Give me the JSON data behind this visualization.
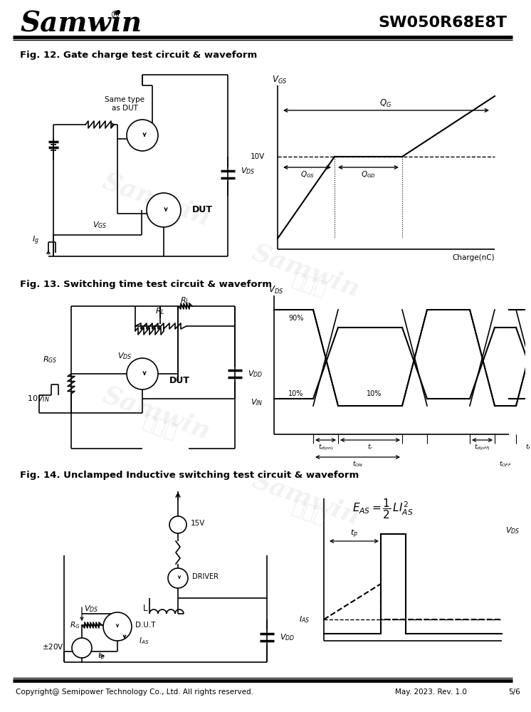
{
  "title_company": "Samwin",
  "title_part": "SW050R68E8T",
  "fig12_title": "Fig. 12. Gate charge test circuit & waveform",
  "fig13_title": "Fig. 13. Switching time test circuit & waveform",
  "fig14_title": "Fig. 14. Unclamped Inductive switching test circuit & waveform",
  "footer_left": "Copyright@ Semipower Technology Co., Ltd. All rights reserved.",
  "footer_mid": "May. 2023. Rev. 1.0",
  "footer_right": "5/6",
  "bg_color": "#ffffff"
}
